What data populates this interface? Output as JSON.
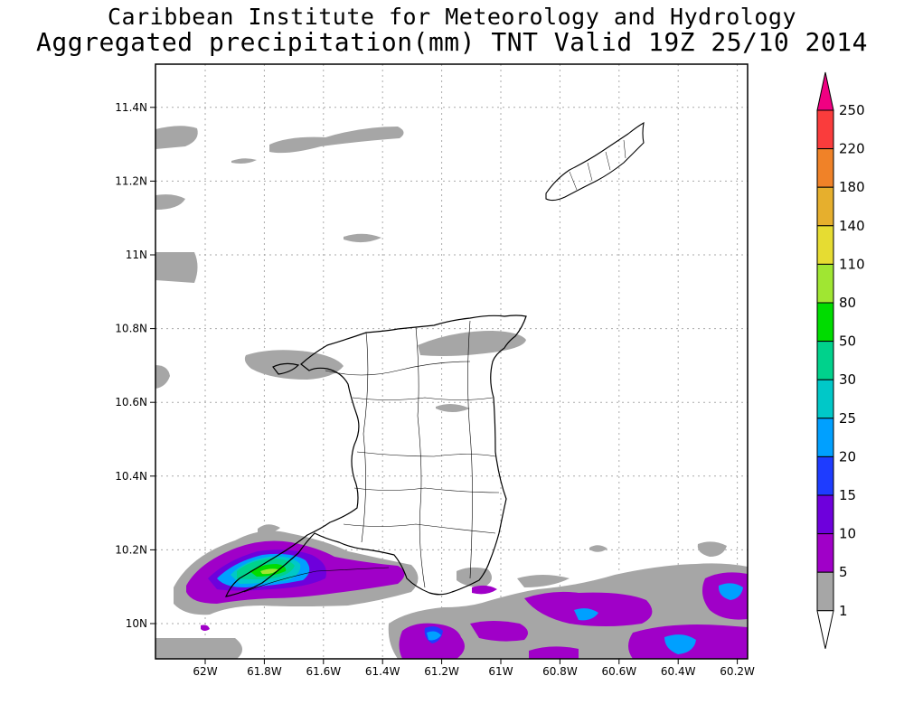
{
  "title": {
    "line1": "Caribbean Institute for Meteorology and Hydrology",
    "line2": "Aggregated precipitation(mm) TNT Valid 19Z 25/10 2014"
  },
  "map": {
    "lon_range": [
      -62.17,
      -60.17
    ],
    "lat_range": [
      9.9,
      11.5
    ],
    "x_ticks": [
      "62W",
      "61.8W",
      "61.6W",
      "61.4W",
      "61.2W",
      "61W",
      "60.8W",
      "60.6W",
      "60.4W",
      "60.2W"
    ],
    "y_ticks": [
      "10N",
      "10.2N",
      "10.4N",
      "10.6N",
      "10.8N",
      "11N",
      "11.2N",
      "11.4N"
    ],
    "grid": "dotted",
    "features": [
      "Trinidad",
      "Tobago"
    ]
  },
  "colorbar": {
    "levels": [
      "1",
      "5",
      "10",
      "15",
      "20",
      "25",
      "30",
      "50",
      "80",
      "110",
      "140",
      "180",
      "220",
      "250"
    ],
    "colors": [
      "#ffffff",
      "#a6a6a6",
      "#a000c8",
      "#6e00dc",
      "#1e3cff",
      "#00a0ff",
      "#00c8c8",
      "#00d28c",
      "#00dc00",
      "#a0e632",
      "#e6dc32",
      "#e6af2d",
      "#f08228",
      "#fa3c3c",
      "#f00082"
    ]
  }
}
